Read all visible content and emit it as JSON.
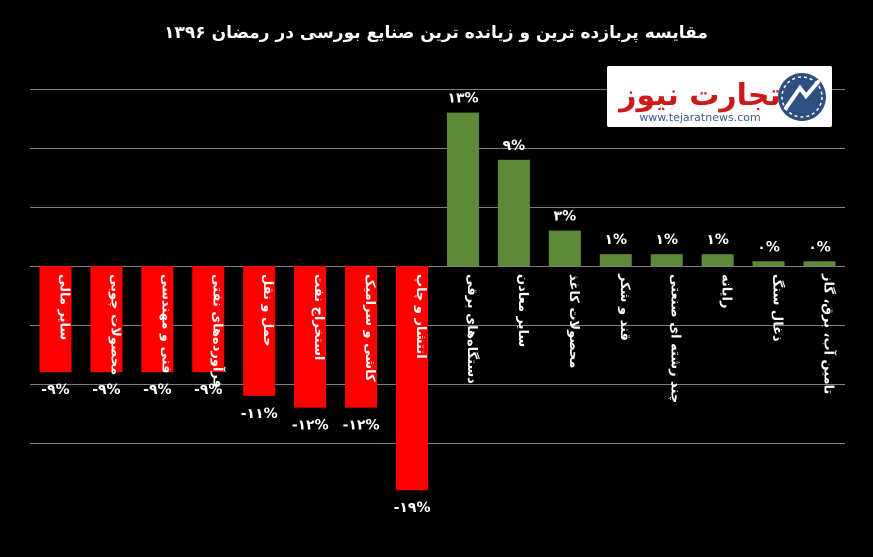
{
  "chart_data": {
    "type": "bar",
    "title": "مقایسه پربازده ترین و زیانده ترین صنایع بورسی در  رمضان ۱۳۹۶",
    "categories": [
      "سایر مالی",
      "محصولات چوبی",
      "فنی و مهندسی",
      "فرآورده‌های نفتی",
      "حمل و نقل",
      "استخراج نفت",
      "کاشی و سرامیک",
      "انتشار و چاپ",
      "دستگاه‌های برقی",
      "سایر معادن",
      "محصولات کاغذ",
      "قند و شکر",
      "چند رشته ای صنعتی",
      "رایانه",
      "ذغال سنگ",
      "تامین آب، برق، گاز"
    ],
    "values": [
      -9,
      -9,
      -9,
      -9,
      -11,
      -12,
      -12,
      -19,
      13,
      9,
      3,
      1,
      1,
      1,
      0.4,
      0.4
    ],
    "value_labels": [
      "-۹%",
      "-۹%",
      "-۹%",
      "-۹%",
      "-۱۱%",
      "-۱۲%",
      "-۱۲%",
      "-۱۹%",
      "۱۳%",
      "۹%",
      "۳%",
      "۱%",
      "۱%",
      "۱%",
      "۰%",
      "۰%"
    ],
    "ylim": [
      -20,
      15
    ],
    "grid": true,
    "colors": {
      "positive": "#5c8a38",
      "negative": "#ff0000",
      "background": "#000000",
      "gridline": "#7f7f7f",
      "text": "#ffffff"
    }
  },
  "logo": {
    "brand_text": "تجارت نیوز",
    "url": "www.tejaratnews.com"
  }
}
